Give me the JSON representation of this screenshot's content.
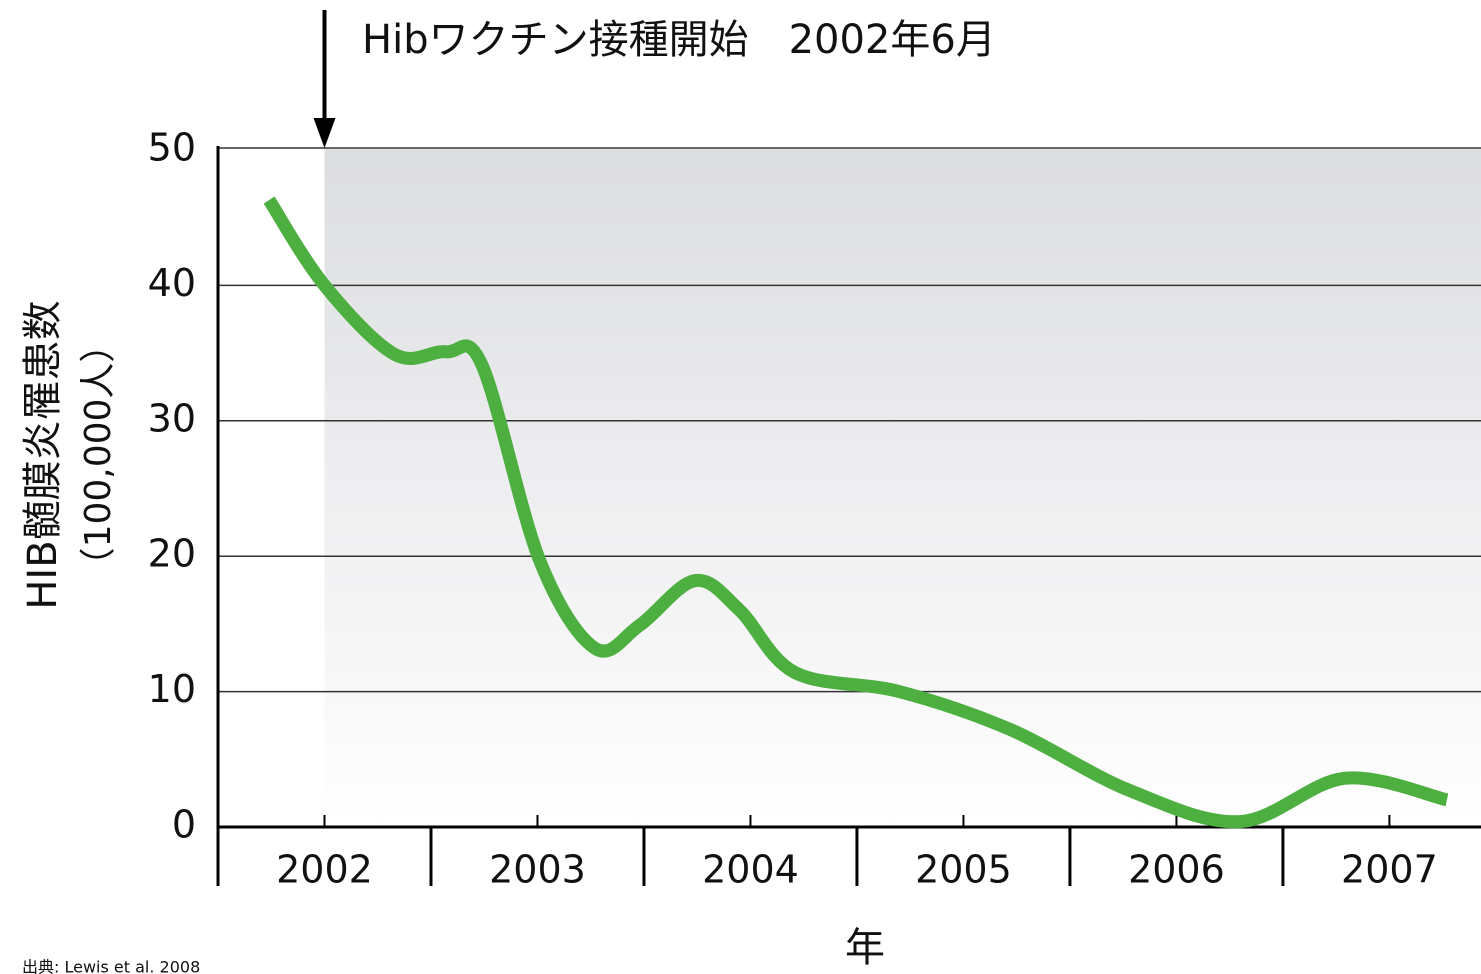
{
  "chart_data": {
    "type": "line",
    "annotation": {
      "text": "Hibワクチン接種開始　2002年6月",
      "x": 2002.0
    },
    "ylabel": [
      "HIB髄膜炎罹患数",
      "（100,000人）"
    ],
    "xlabel": "年",
    "source": "出典: Lewis et al. 2008",
    "xlim": [
      2001.5,
      2007.43
    ],
    "xticks": [
      2002,
      2003,
      2004,
      2005,
      2006,
      2007
    ],
    "ylim": [
      0,
      50
    ],
    "yticks": [
      0,
      10,
      20,
      30,
      40,
      50
    ],
    "grid": true,
    "series": [
      {
        "color": "#4caf3f",
        "x": [
          2001.74,
          2002.0,
          2002.33,
          2002.57,
          2002.74,
          2003.01,
          2003.27,
          2003.48,
          2003.74,
          2003.95,
          2004.21,
          2004.7,
          2005.22,
          2005.78,
          2006.3,
          2006.79,
          2007.27
        ],
        "values": [
          46.3,
          40,
          34.9,
          35.1,
          34.1,
          19.7,
          13.2,
          14.9,
          18.2,
          16,
          11.4,
          10,
          7.2,
          2.7,
          0.4,
          3.6,
          2.0
        ]
      }
    ]
  }
}
